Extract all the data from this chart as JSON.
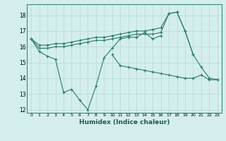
{
  "xlabel": "Humidex (Indice chaleur)",
  "bg_color": "#d4eeee",
  "line_color": "#2a7a6a",
  "grid_color": "#b5d8d5",
  "xlim": [
    -0.5,
    23.5
  ],
  "ylim": [
    11.8,
    18.7
  ],
  "yticks": [
    12,
    13,
    14,
    15,
    16,
    17,
    18
  ],
  "xticks": [
    0,
    1,
    2,
    3,
    4,
    5,
    6,
    7,
    8,
    9,
    10,
    11,
    12,
    13,
    14,
    15,
    16,
    17,
    18,
    19,
    20,
    21,
    22,
    23
  ],
  "series_volatile": [
    16.5,
    15.7,
    15.4,
    15.2,
    13.1,
    13.3,
    12.6,
    12.0,
    13.5,
    15.3,
    15.9,
    16.5,
    16.6,
    16.6,
    16.9,
    16.5,
    16.7,
    null,
    null,
    null,
    null,
    null,
    null,
    null
  ],
  "series_flat_low": [
    null,
    null,
    null,
    null,
    null,
    null,
    null,
    null,
    null,
    null,
    15.5,
    14.8,
    14.7,
    14.6,
    14.5,
    14.4,
    14.3,
    14.2,
    14.1,
    14.0,
    14.0,
    14.2,
    13.9,
    13.9
  ],
  "series_up_down": [
    16.5,
    15.9,
    15.9,
    16.0,
    16.0,
    16.1,
    16.2,
    16.3,
    16.4,
    16.4,
    16.5,
    16.6,
    16.7,
    16.8,
    16.8,
    16.8,
    16.9,
    18.1,
    18.2,
    17.0,
    15.5,
    14.7,
    14.0,
    13.9
  ],
  "series_diagonal": [
    16.5,
    16.1,
    16.1,
    16.2,
    16.2,
    16.3,
    16.4,
    16.5,
    16.6,
    16.6,
    16.7,
    16.8,
    16.9,
    17.0,
    17.0,
    17.1,
    17.2,
    18.1,
    18.2,
    17.0,
    15.5,
    null,
    null,
    null
  ]
}
